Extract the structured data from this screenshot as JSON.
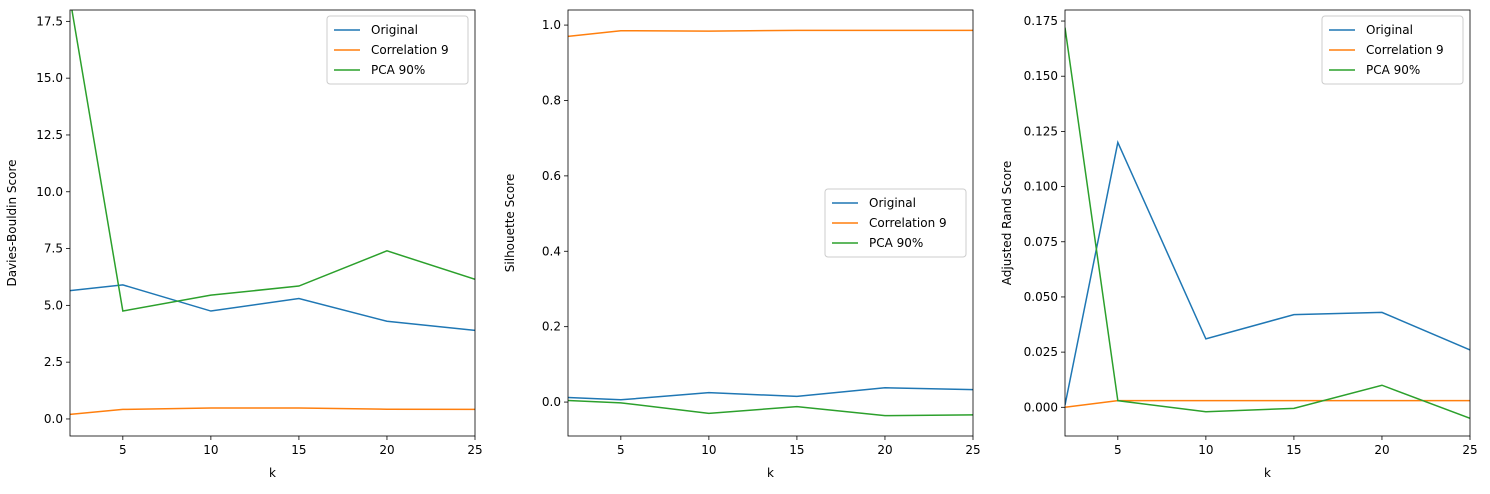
{
  "colors": {
    "original": "#1f77b4",
    "correlation9": "#ff7f0e",
    "pca90": "#2ca02c"
  },
  "chart_data": [
    {
      "type": "line",
      "xlabel": "k",
      "ylabel": "Davies-Bouldin Score",
      "x": [
        2,
        5,
        10,
        15,
        20,
        25
      ],
      "xlim": [
        2,
        25
      ],
      "ylim": [
        -0.75,
        18.0
      ],
      "xticks": [
        5,
        10,
        15,
        20,
        25
      ],
      "yticks": [
        0.0,
        2.5,
        5.0,
        7.5,
        10.0,
        12.5,
        15.0,
        17.5
      ],
      "ytick_labels": [
        "0.0",
        "2.5",
        "5.0",
        "7.5",
        "10.0",
        "12.5",
        "15.0",
        "17.5"
      ],
      "legend_position": "top-right",
      "series": [
        {
          "name": "Original",
          "color_key": "original",
          "values": [
            5.65,
            5.9,
            4.75,
            5.3,
            4.3,
            3.9
          ]
        },
        {
          "name": "Correlation 9",
          "color_key": "correlation9",
          "values": [
            0.2,
            0.42,
            0.48,
            0.48,
            0.43,
            0.42
          ]
        },
        {
          "name": "PCA 90%",
          "color_key": "pca90",
          "values": [
            18.5,
            4.75,
            5.45,
            5.85,
            7.4,
            6.15
          ]
        }
      ]
    },
    {
      "type": "line",
      "xlabel": "k",
      "ylabel": "Silhouette Score",
      "x": [
        2,
        5,
        10,
        15,
        20,
        25
      ],
      "xlim": [
        2,
        25
      ],
      "ylim": [
        -0.09,
        1.04
      ],
      "xticks": [
        5,
        10,
        15,
        20,
        25
      ],
      "yticks": [
        0.0,
        0.2,
        0.4,
        0.6,
        0.8,
        1.0
      ],
      "ytick_labels": [
        "0.0",
        "0.2",
        "0.4",
        "0.6",
        "0.8",
        "1.0"
      ],
      "legend_position": "center-right",
      "series": [
        {
          "name": "Original",
          "color_key": "original",
          "values": [
            0.012,
            0.006,
            0.025,
            0.015,
            0.038,
            0.033
          ]
        },
        {
          "name": "Correlation 9",
          "color_key": "correlation9",
          "values": [
            0.97,
            0.985,
            0.984,
            0.986,
            0.986,
            0.986
          ]
        },
        {
          "name": "PCA 90%",
          "color_key": "pca90",
          "values": [
            0.004,
            -0.002,
            -0.03,
            -0.012,
            -0.036,
            -0.034
          ]
        }
      ]
    },
    {
      "type": "line",
      "xlabel": "k",
      "ylabel": "Adjusted Rand Score",
      "x": [
        2,
        5,
        10,
        15,
        20,
        25
      ],
      "xlim": [
        2,
        25
      ],
      "ylim": [
        -0.013,
        0.18
      ],
      "xticks": [
        5,
        10,
        15,
        20,
        25
      ],
      "yticks": [
        0.0,
        0.025,
        0.05,
        0.075,
        0.1,
        0.125,
        0.15,
        0.175
      ],
      "ytick_labels": [
        "0.000",
        "0.025",
        "0.050",
        "0.075",
        "0.100",
        "0.125",
        "0.150",
        "0.175"
      ],
      "legend_position": "top-right",
      "series": [
        {
          "name": "Original",
          "color_key": "original",
          "values": [
            0.001,
            0.12,
            0.031,
            0.042,
            0.043,
            0.026
          ]
        },
        {
          "name": "Correlation 9",
          "color_key": "correlation9",
          "values": [
            0.0,
            0.003,
            0.003,
            0.003,
            0.003,
            0.003
          ]
        },
        {
          "name": "PCA 90%",
          "color_key": "pca90",
          "values": [
            0.172,
            0.003,
            -0.002,
            -0.0005,
            0.01,
            -0.005
          ]
        }
      ]
    }
  ]
}
